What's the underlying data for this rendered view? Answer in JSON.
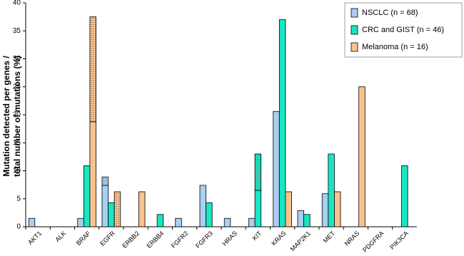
{
  "chart_data": {
    "type": "bar",
    "ylabel": [
      "Mutation detected per genes /",
      "total number of mutations (%)"
    ],
    "categories": [
      "AKT1",
      "ALK",
      "BRAF",
      "EGFR",
      "ERBB2",
      "ERBB4",
      "FGFR2",
      "FGFR3",
      "HRAS",
      "KIT",
      "KRAS",
      "MAP2K1",
      "MET",
      "NRAS",
      "PDGFRA",
      "PIK3CA"
    ],
    "series": [
      {
        "name": "NSCLC (n = 68)",
        "color": "#a9cff1",
        "values": [
          1.5,
          0,
          1.5,
          7.4,
          0,
          0,
          1.5,
          7.4,
          1.5,
          1.5,
          20.6,
          2.9,
          5.9,
          0,
          0,
          0
        ]
      },
      {
        "name": "CRC and GIST (n = 46)",
        "color": "#19e6c3",
        "values": [
          0,
          0,
          10.9,
          4.3,
          0,
          2.2,
          0,
          4.3,
          0,
          6.5,
          37.0,
          2.2,
          13.0,
          0,
          0,
          10.9
        ]
      },
      {
        "name": "Melanoma (n = 16)",
        "color": "#f9c28e",
        "values": [
          0,
          0,
          18.75,
          0,
          6.25,
          0,
          0,
          0,
          0,
          0,
          6.25,
          0,
          6.25,
          25,
          0,
          0
        ]
      },
      {
        "color": "#a9cff1",
        "pattern": "dots",
        "stack_on": 0,
        "values": [
          0,
          0,
          0,
          1.5,
          0,
          0,
          0,
          0,
          0,
          0,
          0,
          0,
          0,
          0,
          0,
          0
        ]
      },
      {
        "color": "#19e6c3",
        "pattern": "dots",
        "stack_on": 1,
        "values": [
          0,
          0,
          0,
          0,
          0,
          0,
          0,
          0,
          0,
          6.5,
          0,
          0,
          0,
          0,
          0,
          0
        ]
      },
      {
        "color": "#f9c28e",
        "pattern": "dots",
        "stack_on": 2,
        "values": [
          0,
          0,
          18.75,
          6.25,
          0,
          0,
          0,
          0,
          0,
          0,
          0,
          0,
          0,
          0,
          0,
          0
        ]
      }
    ],
    "ylim": [
      0,
      40
    ],
    "yticks": [
      0,
      5,
      10,
      15,
      20,
      25,
      30,
      35,
      40
    ],
    "grid": false,
    "legend": "top-right"
  }
}
